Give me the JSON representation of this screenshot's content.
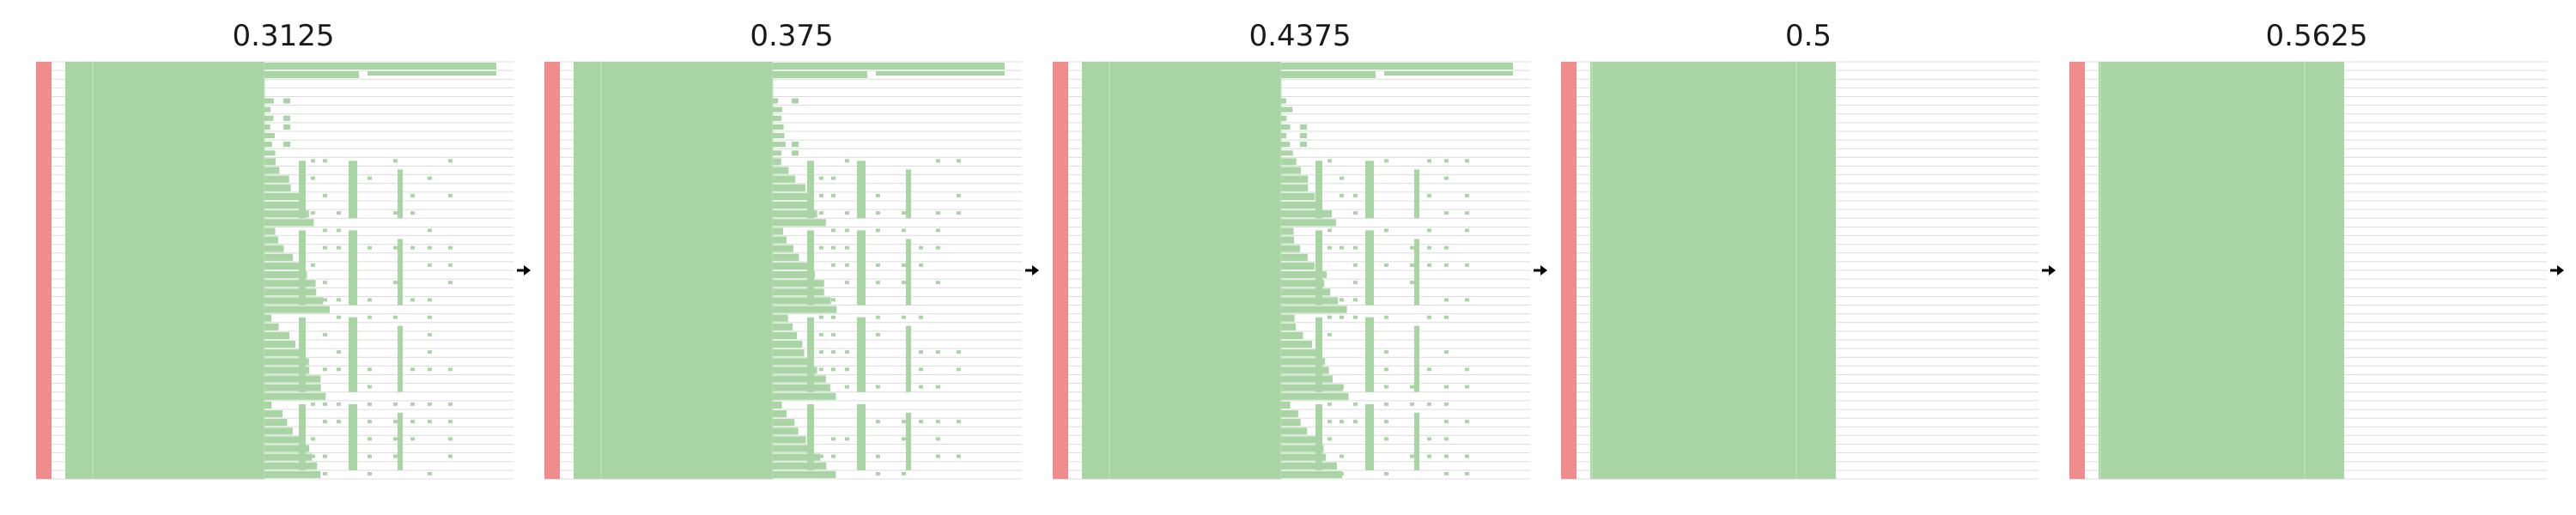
{
  "panels": [
    {
      "title": "0.3125",
      "variant": "detailed"
    },
    {
      "title": "0.375",
      "variant": "detailed"
    },
    {
      "title": "0.4375",
      "variant": "detailed"
    },
    {
      "title": "0.5",
      "variant": "solid"
    },
    {
      "title": "0.5625",
      "variant": "solid"
    }
  ],
  "colors": {
    "red": "#f08c8c",
    "green": "#a8d5a3",
    "line": "#dcdcdc",
    "arrow": "#000000"
  }
}
